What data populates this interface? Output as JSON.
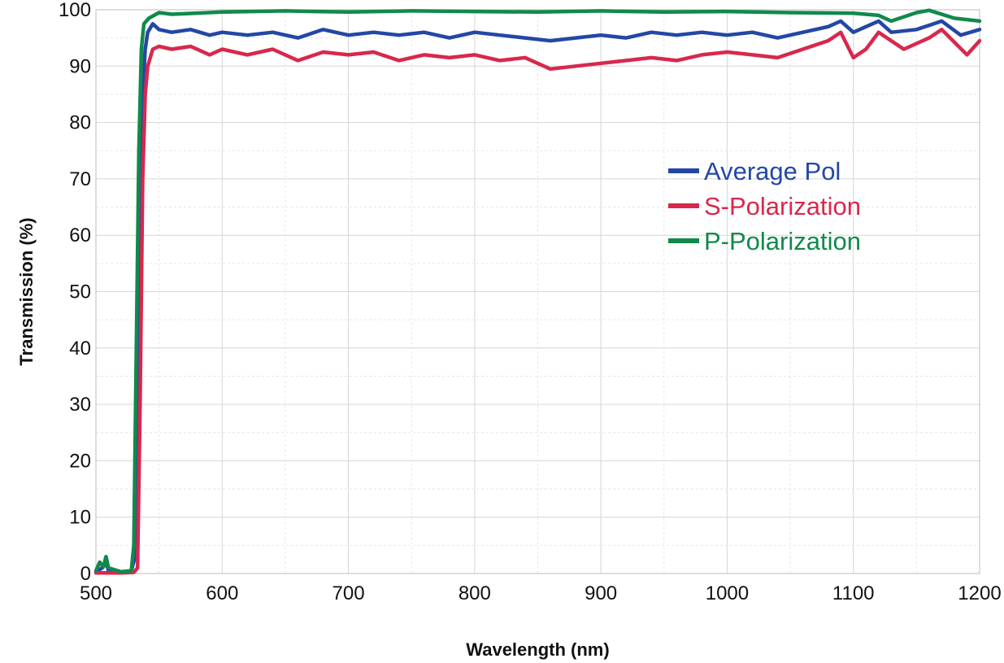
{
  "chart_data": {
    "type": "line",
    "title": "",
    "xlabel": "Wavelength (nm)",
    "ylabel": "Transmission (%)",
    "xlim": [
      500,
      1200
    ],
    "ylim": [
      0,
      100
    ],
    "x_ticks": [
      "500",
      "600",
      "700",
      "800",
      "900",
      "1000",
      "1100",
      "1200"
    ],
    "y_ticks": [
      "0",
      "10",
      "20",
      "30",
      "40",
      "50",
      "60",
      "70",
      "80",
      "90",
      "100"
    ],
    "grid": true,
    "legend_position": "right-center",
    "series": [
      {
        "name": "Average Pol",
        "color": "#2347a6",
        "points": [
          [
            500,
            0.3
          ],
          [
            505,
            1.0
          ],
          [
            508,
            2.0
          ],
          [
            510,
            0.5
          ],
          [
            520,
            0.2
          ],
          [
            528,
            0.4
          ],
          [
            531,
            3
          ],
          [
            533,
            25
          ],
          [
            535,
            60
          ],
          [
            537,
            85
          ],
          [
            539,
            93
          ],
          [
            541,
            96
          ],
          [
            545,
            97.5
          ],
          [
            550,
            96.5
          ],
          [
            560,
            96
          ],
          [
            575,
            96.5
          ],
          [
            590,
            95.5
          ],
          [
            600,
            96
          ],
          [
            620,
            95.5
          ],
          [
            640,
            96
          ],
          [
            660,
            95
          ],
          [
            680,
            96.5
          ],
          [
            700,
            95.5
          ],
          [
            720,
            96
          ],
          [
            740,
            95.5
          ],
          [
            760,
            96
          ],
          [
            780,
            95
          ],
          [
            800,
            96
          ],
          [
            820,
            95.5
          ],
          [
            840,
            95
          ],
          [
            860,
            94.5
          ],
          [
            880,
            95
          ],
          [
            900,
            95.5
          ],
          [
            920,
            95
          ],
          [
            940,
            96
          ],
          [
            960,
            95.5
          ],
          [
            980,
            96
          ],
          [
            1000,
            95.5
          ],
          [
            1020,
            96
          ],
          [
            1040,
            95
          ],
          [
            1060,
            96
          ],
          [
            1080,
            97
          ],
          [
            1090,
            98
          ],
          [
            1100,
            96
          ],
          [
            1110,
            97
          ],
          [
            1120,
            98
          ],
          [
            1130,
            96
          ],
          [
            1150,
            96.5
          ],
          [
            1170,
            98
          ],
          [
            1185,
            95.5
          ],
          [
            1200,
            96.5
          ]
        ]
      },
      {
        "name": "S-Polarization",
        "color": "#d8284c",
        "points": [
          [
            500,
            0.1
          ],
          [
            520,
            0.1
          ],
          [
            530,
            0.2
          ],
          [
            533,
            1
          ],
          [
            535,
            30
          ],
          [
            537,
            70
          ],
          [
            539,
            85
          ],
          [
            541,
            90
          ],
          [
            545,
            93
          ],
          [
            550,
            93.5
          ],
          [
            560,
            93
          ],
          [
            575,
            93.5
          ],
          [
            590,
            92
          ],
          [
            600,
            93
          ],
          [
            620,
            92
          ],
          [
            640,
            93
          ],
          [
            660,
            91
          ],
          [
            680,
            92.5
          ],
          [
            700,
            92
          ],
          [
            720,
            92.5
          ],
          [
            740,
            91
          ],
          [
            760,
            92
          ],
          [
            780,
            91.5
          ],
          [
            800,
            92
          ],
          [
            820,
            91
          ],
          [
            840,
            91.5
          ],
          [
            860,
            89.5
          ],
          [
            880,
            90
          ],
          [
            900,
            90.5
          ],
          [
            920,
            91
          ],
          [
            940,
            91.5
          ],
          [
            960,
            91
          ],
          [
            980,
            92
          ],
          [
            1000,
            92.5
          ],
          [
            1020,
            92
          ],
          [
            1040,
            91.5
          ],
          [
            1060,
            93
          ],
          [
            1080,
            94.5
          ],
          [
            1090,
            96
          ],
          [
            1100,
            91.5
          ],
          [
            1110,
            93
          ],
          [
            1120,
            96
          ],
          [
            1140,
            93
          ],
          [
            1160,
            95
          ],
          [
            1170,
            96.5
          ],
          [
            1190,
            92
          ],
          [
            1200,
            94.5
          ]
        ]
      },
      {
        "name": "P-Polarization",
        "color": "#108a4a",
        "points": [
          [
            500,
            0.5
          ],
          [
            503,
            2.0
          ],
          [
            506,
            1.2
          ],
          [
            508,
            3.0
          ],
          [
            510,
            1.0
          ],
          [
            520,
            0.3
          ],
          [
            528,
            0.5
          ],
          [
            530,
            5
          ],
          [
            532,
            40
          ],
          [
            534,
            75
          ],
          [
            536,
            93
          ],
          [
            538,
            97.5
          ],
          [
            542,
            98.5
          ],
          [
            550,
            99.5
          ],
          [
            560,
            99.2
          ],
          [
            600,
            99.6
          ],
          [
            650,
            99.8
          ],
          [
            700,
            99.6
          ],
          [
            750,
            99.8
          ],
          [
            800,
            99.7
          ],
          [
            850,
            99.6
          ],
          [
            900,
            99.8
          ],
          [
            950,
            99.6
          ],
          [
            1000,
            99.7
          ],
          [
            1050,
            99.5
          ],
          [
            1100,
            99.4
          ],
          [
            1120,
            99.0
          ],
          [
            1130,
            98.0
          ],
          [
            1150,
            99.5
          ],
          [
            1160,
            99.9
          ],
          [
            1180,
            98.5
          ],
          [
            1200,
            98.0
          ]
        ]
      }
    ]
  }
}
